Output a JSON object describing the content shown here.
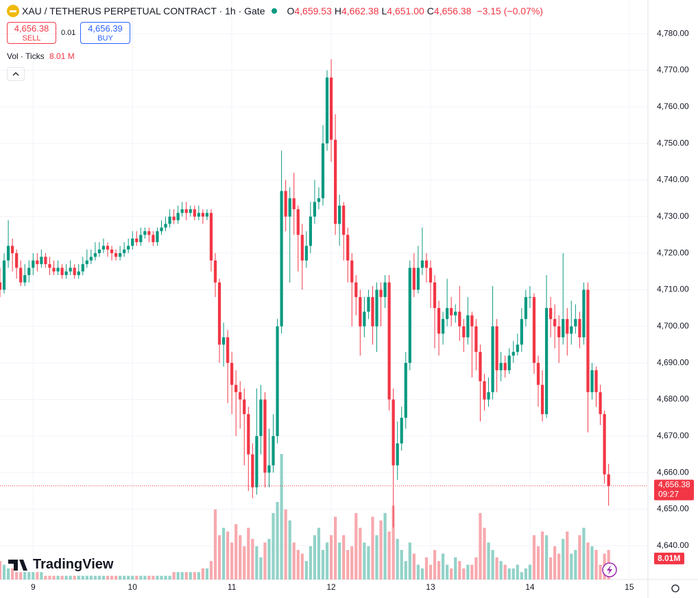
{
  "chart_data": {
    "type": "candlestick",
    "title": "XAU / TETHERUS PERPETUAL CONTRACT · 1h · Gate",
    "ohlc_legend": [
      {
        "key": "O",
        "value": "4,659.53"
      },
      {
        "key": "H",
        "value": "4,662.38"
      },
      {
        "key": "L",
        "value": "4,651.00"
      },
      {
        "key": "C",
        "value": "4,656.38"
      }
    ],
    "change": "−3.15 (−0.07%)",
    "sell": {
      "price": "4,656.38",
      "label": "SELL"
    },
    "spread": "0.01",
    "buy": {
      "price": "4,656.39",
      "label": "BUY"
    },
    "volume_legend": {
      "label": "Vol · Ticks",
      "value": "8.01 M"
    },
    "price_tag": {
      "price": "4,656.38",
      "countdown": "09:27"
    },
    "volume_tag": "8.01M",
    "logo": "TradingView",
    "last_price": 4656.38,
    "up_color": "#089981",
    "down_color": "#f23645",
    "volume_up_color": "#92d2c8",
    "volume_down_color": "#f7a9ae",
    "grid": true,
    "ylim": [
      4630.8,
      4789.2
    ],
    "xlim": [
      0,
      156.5
    ],
    "vlim": [
      0,
      157
    ],
    "yticks": [
      {
        "value": 4640,
        "label": "4,640.00"
      },
      {
        "value": 4650,
        "label": "4,650.00"
      },
      {
        "value": 4660,
        "label": "4,660.00"
      },
      {
        "value": 4670,
        "label": "4,670.00"
      },
      {
        "value": 4680,
        "label": "4,680.00"
      },
      {
        "value": 4690,
        "label": "4,690.00"
      },
      {
        "value": 4700,
        "label": "4,700.00"
      },
      {
        "value": 4710,
        "label": "4,710.00"
      },
      {
        "value": 4720,
        "label": "4,720.00"
      },
      {
        "value": 4730,
        "label": "4,730.00"
      },
      {
        "value": 4740,
        "label": "4,740.00"
      },
      {
        "value": 4750,
        "label": "4,750.00"
      },
      {
        "value": 4760,
        "label": "4,760.00"
      },
      {
        "value": 4770,
        "label": "4,770.00"
      },
      {
        "value": 4780,
        "label": "4,780.00"
      }
    ],
    "xticks": [
      {
        "value": 8,
        "label": "9"
      },
      {
        "value": 32,
        "label": "10"
      },
      {
        "value": 56,
        "label": "11"
      },
      {
        "value": 80,
        "label": "12"
      },
      {
        "value": 104,
        "label": "13"
      },
      {
        "value": 128,
        "label": "14"
      },
      {
        "value": 152,
        "label": "15"
      }
    ],
    "candles": {
      "open": [
        4712,
        4710,
        4718,
        4722,
        4720,
        4716,
        4712,
        4714,
        4716,
        4718,
        4717,
        4719,
        4717,
        4716,
        4715,
        4716,
        4714,
        4715,
        4716,
        4714,
        4715,
        4717,
        4718,
        4719,
        4720,
        4721,
        4722,
        4721,
        4720,
        4719,
        4720,
        4721,
        4722,
        4724,
        4723,
        4725,
        4726,
        4725,
        4723,
        4726,
        4727,
        4728,
        4730,
        4729,
        4731,
        4732,
        4731,
        4732,
        4730,
        4731,
        4730,
        4731,
        4718,
        4712,
        4695,
        4697,
        4690,
        4684,
        4682,
        4680,
        4676,
        4665,
        4656,
        4670,
        4680,
        4660,
        4662,
        4670,
        4700,
        4737,
        4730,
        4735,
        4732,
        4725,
        4718,
        4722,
        4730,
        4734,
        4735,
        4750,
        4768,
        4751,
        4728,
        4733,
        4725,
        4718,
        4712,
        4708,
        4700,
        4704,
        4708,
        4700,
        4710,
        4708,
        4712,
        4680,
        4662,
        4668,
        4675,
        4690,
        4716,
        4710,
        4716,
        4718,
        4716,
        4712,
        4705,
        4698,
        4702,
        4705,
        4703,
        4704,
        4700,
        4697,
        4703,
        4700,
        4693,
        4685,
        4680,
        4682,
        4700,
        4688,
        4690,
        4688,
        4692,
        4693,
        4695,
        4702,
        4708,
        4708,
        4690,
        4684,
        4676,
        4705,
        4702,
        4700,
        4697,
        4702,
        4698,
        4700,
        4702,
        4697,
        4710,
        4682,
        4688,
        4682,
        4676,
        4659.53
      ],
      "high": [
        4716,
        4720,
        4729,
        4724,
        4721,
        4718,
        4717,
        4718,
        4720,
        4720,
        4721,
        4720,
        4719,
        4718,
        4718,
        4717,
        4717,
        4718,
        4717,
        4717,
        4719,
        4721,
        4721,
        4723,
        4723,
        4724,
        4723,
        4722,
        4721,
        4722,
        4723,
        4724,
        4726,
        4726,
        4727,
        4727,
        4727,
        4726,
        4727,
        4729,
        4730,
        4732,
        4732,
        4733,
        4734,
        4734,
        4733,
        4733,
        4733,
        4732,
        4732,
        4732,
        4720,
        4713,
        4701,
        4699,
        4693,
        4688,
        4685,
        4683,
        4678,
        4668,
        4683,
        4684,
        4682,
        4672,
        4676,
        4702,
        4748,
        4740,
        4738,
        4742,
        4733,
        4728,
        4726,
        4734,
        4740,
        4738,
        4755,
        4770,
        4773,
        4758,
        4736,
        4734,
        4727,
        4720,
        4714,
        4710,
        4708,
        4710,
        4711,
        4712,
        4712,
        4714,
        4714,
        4683,
        4674,
        4678,
        4693,
        4718,
        4720,
        4722,
        4727,
        4720,
        4718,
        4714,
        4707,
        4704,
        4713,
        4708,
        4706,
        4711,
        4702,
        4708,
        4704,
        4702,
        4695,
        4687,
        4686,
        4711,
        4702,
        4693,
        4692,
        4694,
        4696,
        4698,
        4705,
        4710,
        4711,
        4709,
        4692,
        4688,
        4714,
        4708,
        4706,
        4703,
        4720,
        4705,
        4707,
        4706,
        4704,
        4712,
        4712,
        4690,
        4689,
        4684,
        4677,
        4662.38
      ],
      "low": [
        4708,
        4709,
        4716,
        4715,
        4713,
        4711,
        4711,
        4712,
        4714,
        4715,
        4716,
        4716,
        4714,
        4714,
        4714,
        4713,
        4713,
        4714,
        4713,
        4713,
        4714,
        4716,
        4717,
        4718,
        4719,
        4720,
        4719,
        4718,
        4718,
        4718,
        4719,
        4720,
        4721,
        4722,
        4722,
        4724,
        4723,
        4722,
        4722,
        4725,
        4726,
        4727,
        4728,
        4728,
        4730,
        4729,
        4730,
        4729,
        4729,
        4728,
        4729,
        4715,
        4708,
        4690,
        4689,
        4679,
        4676,
        4670,
        4672,
        4662,
        4655,
        4653,
        4654,
        4665,
        4656,
        4656,
        4660,
        4668,
        4698,
        4726,
        4712,
        4725,
        4715,
        4710,
        4716,
        4720,
        4728,
        4732,
        4733,
        4748,
        4745,
        4725,
        4722,
        4718,
        4712,
        4700,
        4703,
        4692,
        4697,
        4702,
        4695,
        4693,
        4700,
        4705,
        4677,
        4645,
        4658,
        4666,
        4672,
        4688,
        4708,
        4709,
        4714,
        4712,
        4705,
        4694,
        4692,
        4695,
        4700,
        4700,
        4701,
        4696,
        4693,
        4695,
        4686,
        4688,
        4674,
        4677,
        4678,
        4680,
        4682,
        4685,
        4686,
        4687,
        4690,
        4692,
        4693,
        4700,
        4705,
        4687,
        4678,
        4674,
        4675,
        4697,
        4694,
        4690,
        4695,
        4692,
        4695,
        4698,
        4694,
        4695,
        4671,
        4680,
        4678,
        4673,
        4657,
        4651
      ],
      "close": [
        4710,
        4718,
        4722,
        4720,
        4716,
        4712,
        4714,
        4716,
        4718,
        4717,
        4719,
        4717,
        4716,
        4715,
        4716,
        4714,
        4715,
        4716,
        4714,
        4715,
        4717,
        4718,
        4719,
        4720,
        4721,
        4722,
        4721,
        4720,
        4719,
        4720,
        4721,
        4722,
        4724,
        4723,
        4725,
        4726,
        4725,
        4723,
        4726,
        4727,
        4728,
        4730,
        4729,
        4731,
        4732,
        4731,
        4732,
        4730,
        4731,
        4730,
        4731,
        4718,
        4712,
        4695,
        4697,
        4690,
        4684,
        4682,
        4680,
        4676,
        4665,
        4656,
        4670,
        4680,
        4660,
        4662,
        4670,
        4700,
        4737,
        4730,
        4735,
        4732,
        4725,
        4718,
        4722,
        4730,
        4734,
        4735,
        4750,
        4768,
        4751,
        4728,
        4733,
        4725,
        4718,
        4712,
        4708,
        4700,
        4704,
        4708,
        4700,
        4710,
        4708,
        4712,
        4680,
        4662,
        4668,
        4675,
        4690,
        4716,
        4710,
        4716,
        4718,
        4716,
        4712,
        4705,
        4698,
        4702,
        4705,
        4703,
        4704,
        4700,
        4697,
        4703,
        4700,
        4693,
        4685,
        4680,
        4682,
        4700,
        4688,
        4690,
        4688,
        4692,
        4693,
        4695,
        4702,
        4708,
        4708,
        4690,
        4684,
        4676,
        4705,
        4702,
        4700,
        4697,
        4702,
        4698,
        4700,
        4702,
        4697,
        4710,
        4682,
        4688,
        4682,
        4676,
        4659.53,
        4656.38
      ],
      "volume": [
        5,
        4,
        3,
        3,
        2,
        2,
        2,
        2,
        2,
        2,
        2,
        1,
        1,
        1,
        1,
        1,
        1,
        1,
        1,
        1,
        1,
        1,
        1,
        1,
        1,
        1,
        1,
        1,
        1,
        1,
        1,
        1,
        1,
        1,
        1,
        1,
        1,
        1,
        1,
        1,
        1,
        1,
        2,
        2,
        2,
        2,
        2,
        2,
        2,
        3,
        3,
        5,
        19,
        12,
        14,
        13,
        10,
        15,
        12,
        9,
        14,
        11,
        9,
        6,
        10,
        11,
        18,
        21,
        34,
        19,
        16,
        10,
        8,
        7,
        5,
        9,
        12,
        14,
        8,
        10,
        12,
        17,
        10,
        12,
        8,
        9,
        18,
        14,
        10,
        9,
        17,
        12,
        16,
        18,
        13,
        20,
        11,
        8,
        5,
        10,
        7,
        4,
        3,
        6,
        4,
        8,
        5,
        7,
        4,
        3,
        6,
        5,
        3,
        4,
        4,
        6,
        18,
        14,
        10,
        8,
        6,
        5,
        4,
        3,
        3,
        4,
        2,
        3,
        4,
        12,
        9,
        13,
        12,
        6,
        9,
        7,
        11,
        13,
        7,
        8,
        12,
        14,
        10,
        9,
        8,
        4,
        7,
        8.01
      ]
    }
  }
}
